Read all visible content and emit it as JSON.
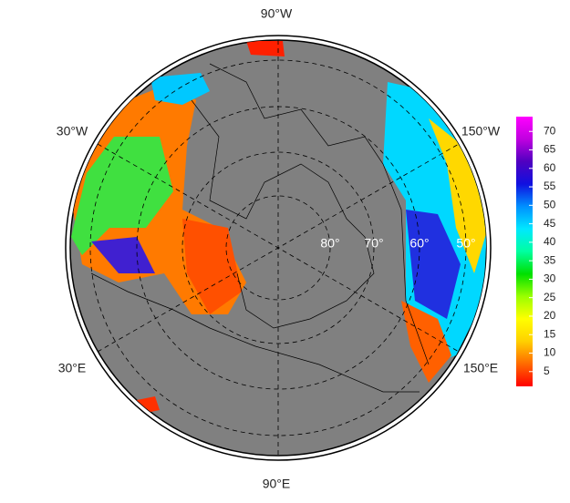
{
  "map": {
    "longitude_labels": [
      "90°W",
      "30°W",
      "150°W",
      "30°E",
      "150°E",
      "90°E"
    ],
    "latitude_labels": [
      "80°",
      "70°",
      "60°",
      "50°"
    ],
    "colorbar": {
      "range": [
        1,
        74
      ],
      "ticks": [
        5,
        10,
        15,
        20,
        25,
        30,
        35,
        40,
        45,
        50,
        55,
        60,
        65,
        70
      ],
      "colors": [
        "#ff0000",
        "#ff6a00",
        "#ffd000",
        "#ffff00",
        "#9aff00",
        "#00e000",
        "#00ffa0",
        "#00e8ff",
        "#0090ff",
        "#1010e0",
        "#5000c0",
        "#c000e0",
        "#ff00ff"
      ]
    }
  }
}
